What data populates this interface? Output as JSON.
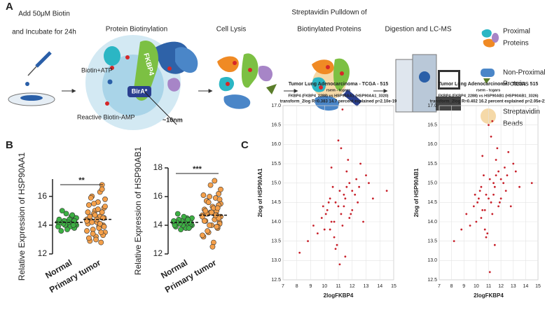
{
  "panel_labels": [
    "A",
    "B",
    "C"
  ],
  "workflow": {
    "steps": [
      [
        "Add 50μM Biotin",
        "and Incubate for 24h"
      ],
      [
        "Protein Biotinylation"
      ],
      [
        "Cell Lysis"
      ],
      [
        "Streptavidin Pulldown of",
        "Biotinylated Proteins"
      ],
      [
        "Digestion and LC-MS"
      ]
    ],
    "diagram_labels": {
      "biotin_atp": "Biotin+ATP",
      "fkbp4": "FKBP4",
      "bira": "BirA*",
      "biotin_amp": "Reactive Biotin-AMP",
      "distance": "~10nm"
    },
    "legend": [
      [
        "Proximal",
        "Proteins"
      ],
      [
        "Non-Proximal",
        "Proteins"
      ],
      [
        "Streptavidin",
        "Beads"
      ]
    ]
  },
  "chart_data": [
    {
      "type": "strip",
      "ylabel": "Relative Expression of HSP90AA1",
      "ylim": [
        12,
        17.2
      ],
      "yticks": [
        12,
        14,
        16
      ],
      "significance": "**",
      "series": [
        {
          "name": "Normal",
          "color": "#3cb043",
          "mean": 14.2,
          "values": [
            14.2,
            14.0,
            14.5,
            13.8,
            14.3,
            14.1,
            14.6,
            13.9,
            14.4,
            14.2,
            13.7,
            14.8,
            14.0,
            14.3,
            14.1,
            15.0,
            13.6,
            14.2,
            14.4,
            13.9,
            14.5,
            14.1,
            14.3,
            14.0,
            14.7
          ]
        },
        {
          "name": "Primary tumor",
          "color": "#f5a04a",
          "mean": 14.4,
          "values": [
            14.4,
            13.5,
            15.2,
            14.0,
            16.8,
            12.8,
            14.6,
            13.9,
            15.6,
            14.2,
            13.2,
            15.0,
            14.8,
            13.7,
            16.0,
            14.3,
            12.9,
            15.4,
            14.1,
            13.6,
            15.8,
            14.5,
            13.3,
            14.9,
            14.0,
            16.3,
            13.8,
            15.1,
            14.4,
            13.0,
            14.7,
            15.5,
            13.4,
            14.2,
            15.9,
            14.6,
            13.1,
            14.9,
            14.3,
            15.3,
            13.9,
            14.5,
            16.5,
            13.5,
            14.1
          ]
        }
      ]
    },
    {
      "type": "strip",
      "ylabel": "Relative Expression of HSP90AB1",
      "ylim": [
        12,
        18
      ],
      "yticks": [
        12,
        14,
        16,
        18
      ],
      "significance": "***",
      "series": [
        {
          "name": "Normal",
          "color": "#3cb043",
          "mean": 14.2,
          "values": [
            14.2,
            14.0,
            14.4,
            13.9,
            14.3,
            14.1,
            14.5,
            13.8,
            14.2,
            14.6,
            14.0,
            14.3,
            13.7,
            14.1,
            14.4,
            14.8,
            14.2,
            13.9,
            14.0,
            14.3,
            14.5,
            14.1,
            14.2,
            13.8,
            14.4
          ]
        },
        {
          "name": "Primary tumor",
          "color": "#f5a04a",
          "mean": 14.7,
          "values": [
            14.7,
            15.5,
            14.2,
            16.2,
            13.8,
            15.0,
            14.5,
            17.1,
            12.8,
            15.3,
            14.0,
            14.9,
            16.0,
            13.5,
            14.8,
            15.7,
            14.3,
            15.1,
            13.2,
            14.6,
            16.5,
            14.1,
            15.4,
            13.9,
            14.7,
            15.9,
            14.4,
            15.2,
            12.5,
            14.9,
            16.8,
            14.0,
            15.6,
            13.6,
            14.8,
            15.0,
            14.3,
            16.1,
            13.3,
            14.6,
            15.8,
            14.5,
            15.2,
            13.9,
            14.7
          ]
        }
      ]
    },
    {
      "type": "scatter",
      "title": "Tumor Lung Adenocarcinoma - TCGA - 515",
      "subtitle": "rsem - tcgars",
      "description": "FKBP4 (FKBP4_2288) vs HSP90AA1 (HSP90AA1_3320)",
      "stats": "transform_2log R=0.383 14.7 percent explained p=2.10e-19",
      "xlabel": "2logFKBP4",
      "ylabel": "2log of HSP90AA1",
      "color": "#c8202a",
      "grid": true,
      "xlim": [
        7,
        15
      ],
      "xticks": [
        7,
        8,
        9,
        10,
        11,
        12,
        13,
        14,
        15
      ],
      "ylim": [
        12.5,
        17
      ],
      "yticks": [
        12.5,
        {
          "value": 13,
          "label": "13.0"
        },
        13.5,
        {
          "value": 14,
          "label": "14.0"
        },
        14.5,
        {
          "value": 15,
          "label": "15.0"
        },
        15.5,
        {
          "value": 16,
          "label": "16.0"
        },
        16.5,
        {
          "value": 17,
          "label": "17.0"
        }
      ],
      "x": [
        11.0,
        10.5,
        11.5,
        12.0,
        10.0,
        11.2,
        10.8,
        11.8,
        9.5,
        12.5,
        11.3,
        10.2,
        11.6,
        10.7,
        12.2,
        9.8,
        11.1,
        10.4,
        11.9,
        13.0,
        10.9,
        11.4,
        8.8,
        12.8,
        11.7,
        10.3,
        11.0,
        12.3,
        9.2,
        10.6,
        11.5,
        13.5,
        10.1,
        11.2,
        12.0,
        10.8,
        14.5,
        8.2,
        11.4,
        10.5,
        12.6,
        11.1,
        9.9,
        11.8,
        10.7,
        12.4,
        11.3,
        13.2,
        10.4,
        11.6
      ],
      "y": [
        14.4,
        14.0,
        14.6,
        14.8,
        13.8,
        14.2,
        14.5,
        15.0,
        13.7,
        14.9,
        13.9,
        14.3,
        15.3,
        13.6,
        14.7,
        14.1,
        14.8,
        14.6,
        14.2,
        15.2,
        13.4,
        14.4,
        13.5,
        14.0,
        15.6,
        14.5,
        16.1,
        15.1,
        13.9,
        14.9,
        13.1,
        14.6,
        14.2,
        15.9,
        14.3,
        13.3,
        14.8,
        13.2,
        14.7,
        15.4,
        15.5,
        12.9,
        14.4,
        14.1,
        14.0,
        14.5,
        16.9,
        15.0,
        13.8,
        14.9
      ]
    },
    {
      "type": "scatter",
      "title": "Tumor Lung Adenocarcinoma - TCGA - 515",
      "subtitle": "rsem - tcgars",
      "description": "FKBP4 (FKBP4_2288) vs HSP90AB1 (HSP90AB1_3326)",
      "stats": "transform_2log R=0.402 16.2 percent explained p=2.05e-21",
      "xlabel": "2logFKBP4",
      "ylabel": "2log of HSP90AB1",
      "color": "#c8202a",
      "grid": true,
      "xlim": [
        7,
        15
      ],
      "xticks": [
        7,
        8,
        9,
        10,
        11,
        12,
        13,
        14,
        15
      ],
      "ylim": [
        12.5,
        17
      ],
      "yticks": [
        12.5,
        {
          "value": 13,
          "label": "13.0"
        },
        13.5,
        {
          "value": 14,
          "label": "14.0"
        },
        14.5,
        {
          "value": 15,
          "label": "15.0"
        },
        15.5,
        {
          "value": 16,
          "label": "16.0"
        },
        16.5,
        {
          "value": 17,
          "label": "17.0"
        }
      ],
      "x": [
        11.0,
        10.5,
        11.5,
        12.0,
        10.0,
        11.2,
        10.8,
        11.8,
        9.5,
        12.5,
        11.3,
        10.2,
        11.6,
        10.7,
        12.2,
        9.8,
        11.1,
        10.4,
        11.9,
        13.0,
        10.9,
        11.4,
        8.8,
        12.8,
        11.7,
        10.3,
        11.0,
        12.3,
        9.2,
        10.6,
        11.5,
        13.5,
        10.1,
        11.2,
        12.0,
        10.8,
        14.5,
        8.2,
        11.4,
        10.5,
        12.6,
        11.1,
        9.9,
        11.8,
        10.7,
        12.4,
        11.3,
        13.2,
        10.4,
        11.6
      ],
      "y": [
        14.6,
        14.3,
        14.9,
        15.1,
        14.0,
        14.5,
        14.7,
        15.3,
        13.9,
        15.2,
        14.2,
        14.6,
        15.6,
        13.8,
        15.0,
        14.4,
        15.1,
        14.9,
        14.5,
        15.5,
        13.7,
        14.7,
        13.8,
        14.4,
        15.9,
        14.8,
        16.5,
        15.4,
        14.2,
        15.2,
        13.4,
        14.9,
        14.5,
        16.2,
        14.6,
        13.6,
        15.0,
        13.5,
        15.0,
        15.7,
        15.8,
        12.7,
        14.7,
        14.4,
        14.3,
        14.8,
        16.6,
        15.3,
        14.1,
        15.2
      ]
    }
  ]
}
